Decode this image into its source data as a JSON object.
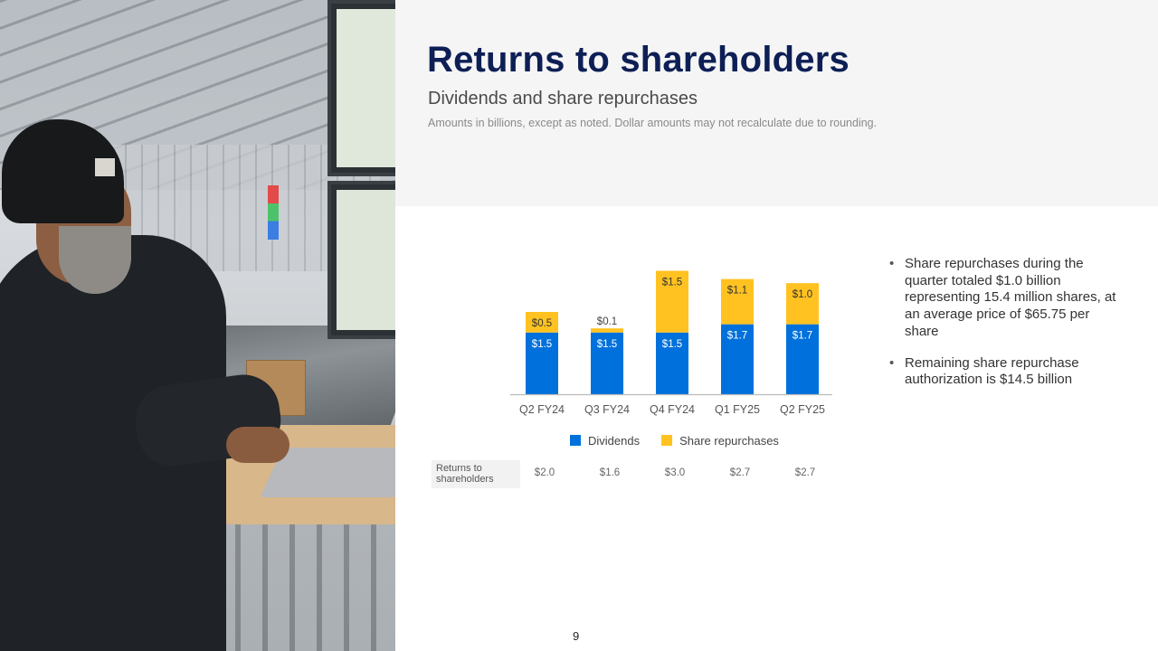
{
  "header": {
    "title": "Returns to shareholders",
    "subtitle": "Dividends and share repurchases",
    "note": "Amounts in billions, except as noted. Dollar amounts may not recalculate due to rounding."
  },
  "colors": {
    "dividends": "#0071dc",
    "repurchases": "#ffc220",
    "title": "#0d1f55"
  },
  "chart_data": {
    "type": "bar",
    "stacked": true,
    "categories": [
      "Q2 FY24",
      "Q3 FY24",
      "Q4 FY24",
      "Q1 FY25",
      "Q2 FY25"
    ],
    "series": [
      {
        "name": "Dividends",
        "values": [
          1.5,
          1.5,
          1.5,
          1.7,
          1.7
        ],
        "labels": [
          "$1.5",
          "$1.5",
          "$1.5",
          "$1.7",
          "$1.7"
        ]
      },
      {
        "name": "Share repurchases",
        "values": [
          0.5,
          0.1,
          1.5,
          1.1,
          1.0
        ],
        "labels": [
          "$0.5",
          "$0.1",
          "$1.5",
          "$1.1",
          "$1.0"
        ]
      }
    ],
    "legend_position": "bottom",
    "grid": false
  },
  "returns_row": {
    "label": "Returns to shareholders",
    "values": [
      "$2.0",
      "$1.6",
      "$3.0",
      "$2.7",
      "$2.7"
    ]
  },
  "bullets": [
    "Share repurchases during the quarter totaled $1.0 billion representing 15.4 million shares, at an average price of $65.75 per share",
    "Remaining share repurchase authorization is $14.5 billion"
  ],
  "page_number": "9"
}
